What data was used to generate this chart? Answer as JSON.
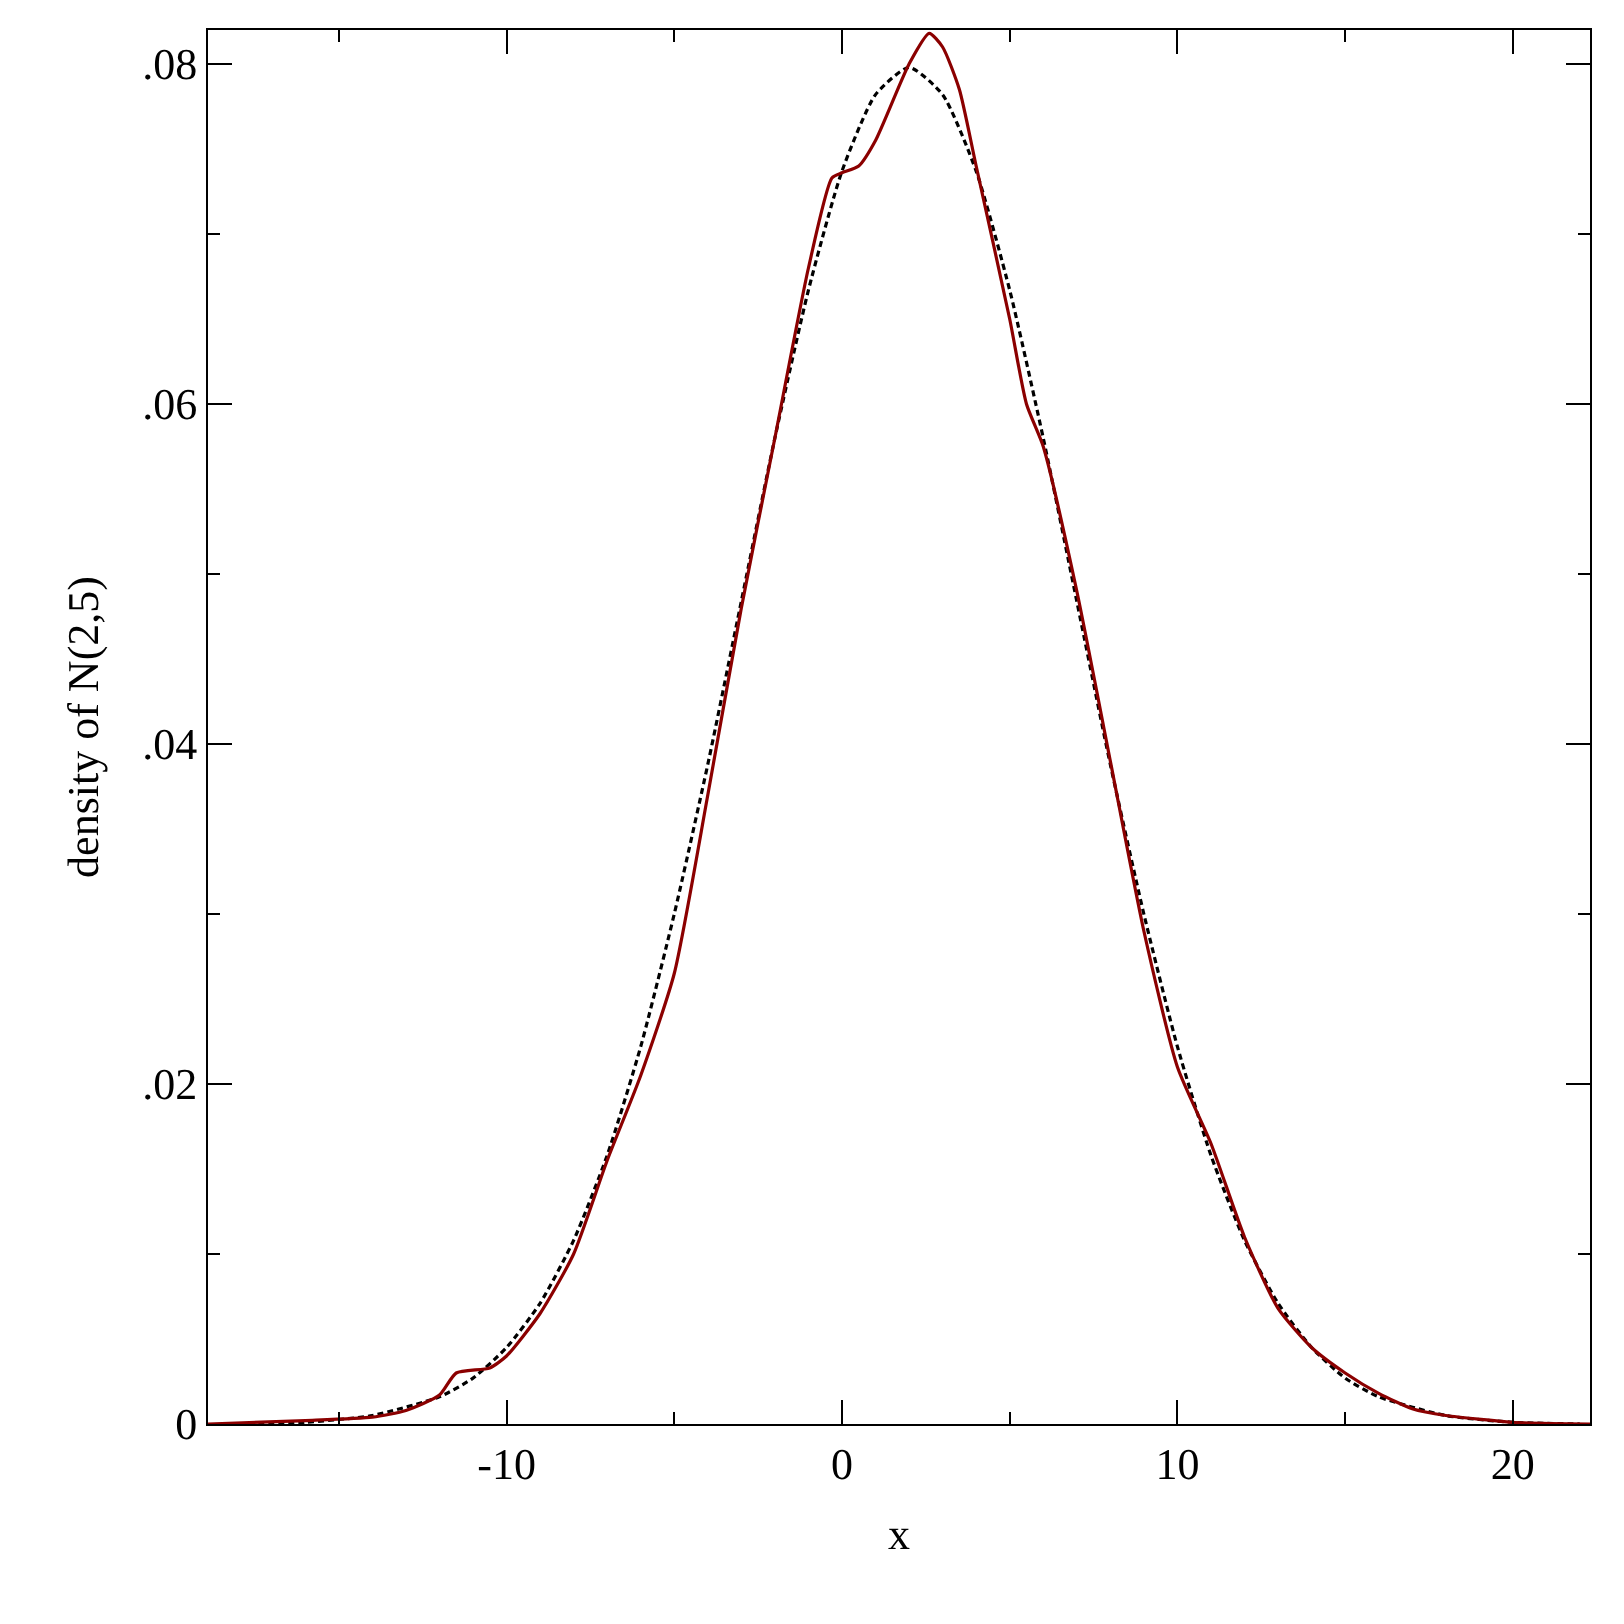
{
  "chart_data": {
    "type": "line",
    "xlabel": "x",
    "ylabel": "density of N(2,5)",
    "xlim": [
      -18.9,
      22.3
    ],
    "ylim": [
      0,
      0.082
    ],
    "xticks": [
      {
        "value": -15,
        "label": null
      },
      -10,
      {
        "value": -5,
        "label": null
      },
      0,
      {
        "value": 5,
        "label": null
      },
      10,
      {
        "value": 15,
        "label": null
      },
      20
    ],
    "yticks": [
      {
        "value": 0,
        "label": "0"
      },
      {
        "value": 0.01,
        "label": null
      },
      {
        "value": 0.02,
        "label": ".02"
      },
      {
        "value": 0.03,
        "label": null
      },
      {
        "value": 0.04,
        "label": ".04"
      },
      {
        "value": 0.05,
        "label": null
      },
      {
        "value": 0.06,
        "label": ".06"
      },
      {
        "value": 0.07,
        "label": null
      },
      {
        "value": 0.08,
        "label": ".08"
      }
    ],
    "marker": "none",
    "series": [
      {
        "color": "#000000",
        "line_style": "dashed",
        "x": [
          -18,
          -16,
          -14,
          -12,
          -11,
          -10,
          -9,
          -8,
          -7,
          -6,
          -5,
          -4,
          -3,
          -2,
          -1,
          0,
          1,
          2,
          3,
          4,
          5,
          6,
          7,
          8,
          9,
          10,
          11,
          12,
          13,
          14,
          15,
          16,
          18,
          20,
          22
        ],
        "values": [
          0,
          0.0001,
          0.0005,
          0.0016,
          0.0027,
          0.0045,
          0.0071,
          0.0108,
          0.0158,
          0.0222,
          0.03,
          0.0388,
          0.0484,
          0.058,
          0.0667,
          0.0737,
          0.0782,
          0.0798,
          0.0782,
          0.0737,
          0.0667,
          0.058,
          0.0484,
          0.0388,
          0.03,
          0.0222,
          0.0158,
          0.0108,
          0.0071,
          0.0045,
          0.0027,
          0.0016,
          0.0005,
          0.0001,
          0
        ]
      },
      {
        "color": "#8b0000",
        "line_style": "solid",
        "x": [
          -18.9,
          -16,
          -14,
          -13,
          -12,
          -11.5,
          -10.5,
          -10,
          -9,
          -8,
          -7,
          -6,
          -5,
          -4,
          -3,
          -2,
          -1,
          -0.3,
          0,
          0.5,
          1,
          2,
          2.6,
          3,
          3.5,
          4,
          5,
          5.5,
          6,
          7,
          8,
          9,
          10,
          11,
          12,
          13,
          14,
          15,
          16,
          17,
          18,
          20,
          22.3
        ],
        "values": [
          0,
          0.0002,
          0.0004,
          0.0008,
          0.0017,
          0.003,
          0.0033,
          0.004,
          0.0065,
          0.01,
          0.0155,
          0.0205,
          0.0265,
          0.037,
          0.048,
          0.058,
          0.068,
          0.0733,
          0.0736,
          0.074,
          0.0755,
          0.08,
          0.0818,
          0.081,
          0.0785,
          0.074,
          0.065,
          0.06,
          0.0575,
          0.049,
          0.039,
          0.029,
          0.021,
          0.0165,
          0.011,
          0.0068,
          0.0045,
          0.003,
          0.0018,
          0.0009,
          0.0005,
          0.0001,
          0
        ]
      }
    ]
  }
}
